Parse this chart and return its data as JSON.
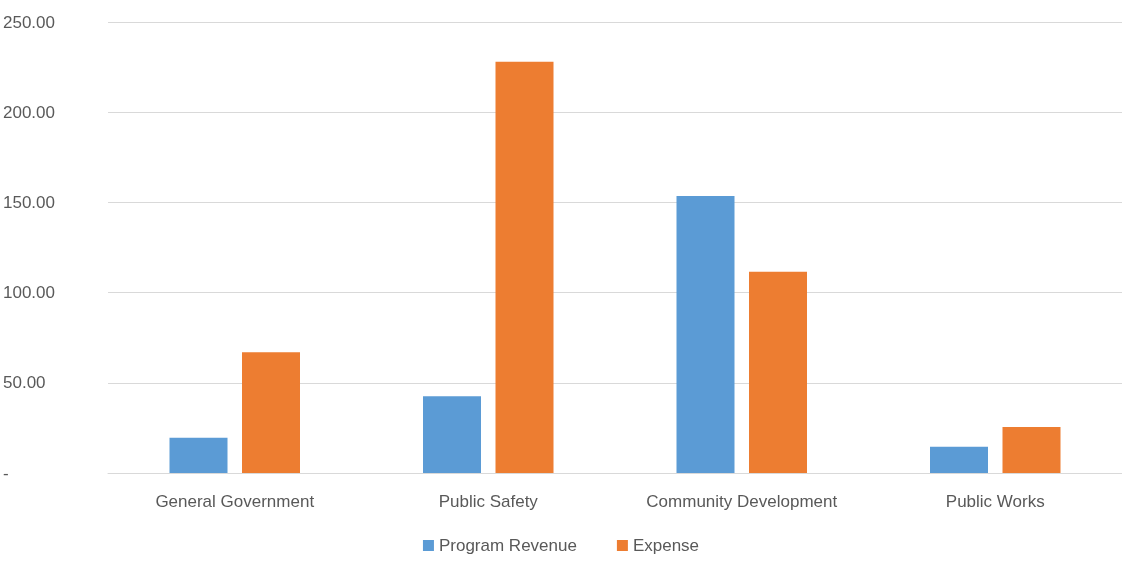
{
  "chart_data": {
    "type": "bar",
    "categories": [
      "General Government",
      "Public Safety",
      "Community Development",
      "Public Works"
    ],
    "series": [
      {
        "name": "Program Revenue",
        "color": "#5b9bd5",
        "values": [
          19.5,
          42.5,
          153.5,
          14.5
        ]
      },
      {
        "name": "Expense",
        "color": "#ed7d31",
        "values": [
          67,
          228,
          111.5,
          25.5
        ]
      }
    ],
    "ylim": [
      0,
      250
    ],
    "yticks": [
      {
        "value": 0,
        "label": "-"
      },
      {
        "value": 50,
        "label": "50.00"
      },
      {
        "value": 100,
        "label": "100.00"
      },
      {
        "value": 150,
        "label": "150.00"
      },
      {
        "value": 200,
        "label": "200.00"
      },
      {
        "value": 250,
        "label": "250.00"
      }
    ],
    "grid": "y",
    "legend": "bottom"
  }
}
